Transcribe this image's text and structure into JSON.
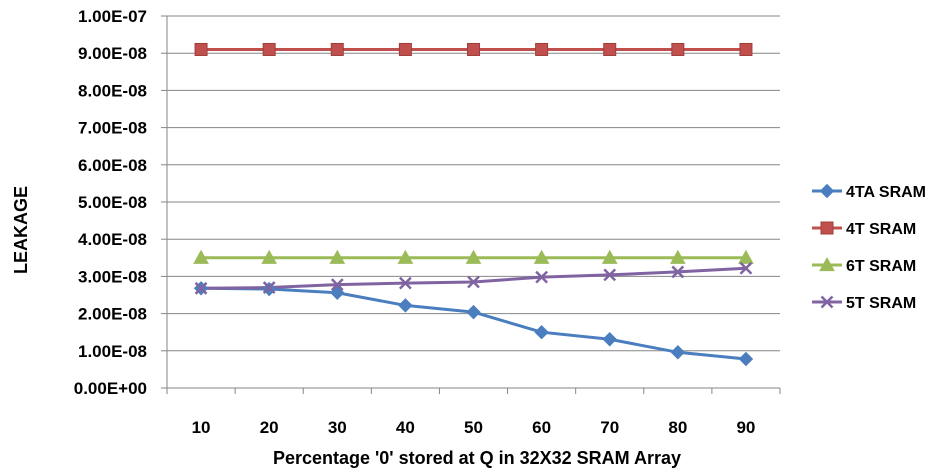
{
  "chart_data": {
    "type": "line",
    "title": "",
    "xlabel": "Percentage '0'  stored at Q in 32X32 SRAM Array",
    "ylabel": "LEAKAGE",
    "categories": [
      "10",
      "20",
      "30",
      "40",
      "50",
      "60",
      "70",
      "80",
      "90"
    ],
    "ylim": [
      0,
      1e-07
    ],
    "yticks": [
      0,
      1e-08,
      2e-08,
      3e-08,
      4e-08,
      5e-08,
      6e-08,
      7e-08,
      8e-08,
      9e-08,
      1e-07
    ],
    "ytick_labels": [
      "0.00E+00",
      "1.00E-08",
      "2.00E-08",
      "3.00E-08",
      "4.00E-08",
      "5.00E-08",
      "6.00E-08",
      "7.00E-08",
      "8.00E-08",
      "9.00E-08",
      "1.00E-07"
    ],
    "grid": true,
    "legend_position": "right",
    "series": [
      {
        "name": "4TA SRAM",
        "color": "#4a7ebf",
        "marker": "diamond",
        "values": [
          2.68e-08,
          2.66e-08,
          2.56e-08,
          2.22e-08,
          2.04e-08,
          1.5e-08,
          1.31e-08,
          9.6e-09,
          7.8e-09
        ]
      },
      {
        "name": "4T SRAM",
        "color": "#c0504d",
        "marker": "square",
        "values": [
          9.1e-08,
          9.1e-08,
          9.1e-08,
          9.1e-08,
          9.1e-08,
          9.1e-08,
          9.1e-08,
          9.1e-08,
          9.1e-08
        ]
      },
      {
        "name": "6T SRAM",
        "color": "#9bbb59",
        "marker": "triangle",
        "values": [
          3.5e-08,
          3.5e-08,
          3.5e-08,
          3.5e-08,
          3.5e-08,
          3.5e-08,
          3.5e-08,
          3.5e-08,
          3.5e-08
        ]
      },
      {
        "name": "5T SRAM",
        "color": "#8064a2",
        "marker": "x",
        "values": [
          2.68e-08,
          2.7e-08,
          2.78e-08,
          2.82e-08,
          2.85e-08,
          2.98e-08,
          3.04e-08,
          3.12e-08,
          3.22e-08
        ]
      }
    ]
  }
}
